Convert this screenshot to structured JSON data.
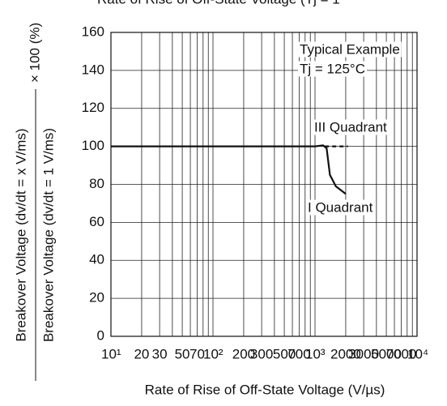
{
  "chart_data": {
    "type": "line",
    "title": "Rate of Rise of Off-State Voltage (Tj = 1",
    "x_label": "Rate of Rise of Off-State Voltage (V/µs)",
    "y_label_top": "Breakover Voltage (dv/dt = x V/ms)",
    "y_label_bottom": "Breakover Voltage (dv/dt = 1 V/ms)",
    "y_label_factor": "× 100 (%)",
    "annotations": [
      "Typical Example",
      "Tj = 125°C"
    ],
    "log_x": true,
    "grid": true,
    "xlim": [
      10,
      10000
    ],
    "ylim": [
      0,
      160
    ],
    "yticks": [
      0,
      20,
      40,
      60,
      80,
      100,
      120,
      140,
      160
    ],
    "xticks": [
      {
        "value": 10,
        "label": "10¹"
      },
      20,
      30,
      50,
      70,
      {
        "value": 100,
        "label": "10²"
      },
      200,
      300,
      500,
      700,
      {
        "value": 1000,
        "label": "10³"
      },
      2000,
      3000,
      5000,
      7000,
      {
        "value": 10000,
        "label": "10⁴"
      }
    ],
    "xminorticks": [
      40,
      60,
      80,
      90,
      400,
      600,
      800,
      900,
      4000,
      6000,
      8000,
      9000
    ],
    "series": [
      {
        "name": "I Quadrant",
        "color": "#111111",
        "dash": false,
        "x": [
          10,
          100,
          1000,
          1200,
          1300,
          1400,
          1600,
          2000
        ],
        "values": [
          100,
          100,
          100,
          100.5,
          99,
          85,
          79,
          75
        ]
      },
      {
        "name": "III Quadrant",
        "color": "#111111",
        "dash": true,
        "x": [
          1250,
          2100
        ],
        "values": [
          100,
          100
        ]
      }
    ]
  }
}
